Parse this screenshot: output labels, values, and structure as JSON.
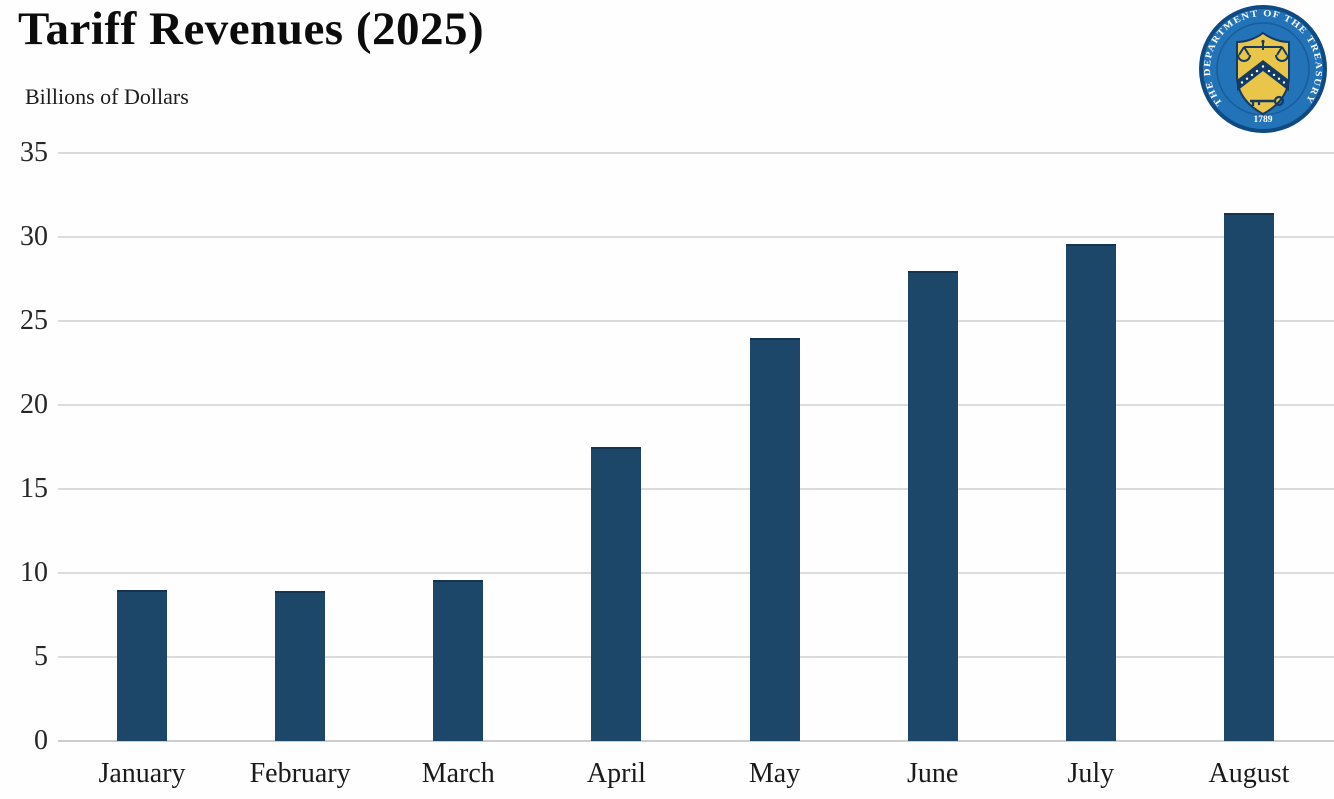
{
  "header": {
    "title": "Tariff Revenues (2025)",
    "subtitle": "Billions of Dollars"
  },
  "seal": {
    "ring_text": "THE DEPARTMENT OF THE TREASURY",
    "year": "1789",
    "colors": {
      "edge": "#0f4a82",
      "field": "#2273b8",
      "shield": "#e9c64a",
      "emblem": "#123a63",
      "text": "#ffffff"
    }
  },
  "chart_data": {
    "type": "bar",
    "title": "Tariff Revenues (2025)",
    "ylabel": "Billions of Dollars",
    "xlabel": "",
    "categories": [
      "January",
      "February",
      "March",
      "April",
      "May",
      "June",
      "July",
      "August"
    ],
    "values": [
      9.0,
      8.9,
      9.6,
      17.5,
      24.0,
      28.0,
      29.6,
      31.4
    ],
    "ylim": [
      0,
      35
    ],
    "yticks": [
      0,
      5,
      10,
      15,
      20,
      25,
      30,
      35
    ],
    "grid": "horizontal",
    "legend": "none",
    "bar_color": "#1d4769",
    "gridline_color": "#dcdcdc",
    "baseline_color": "#cccccc"
  }
}
